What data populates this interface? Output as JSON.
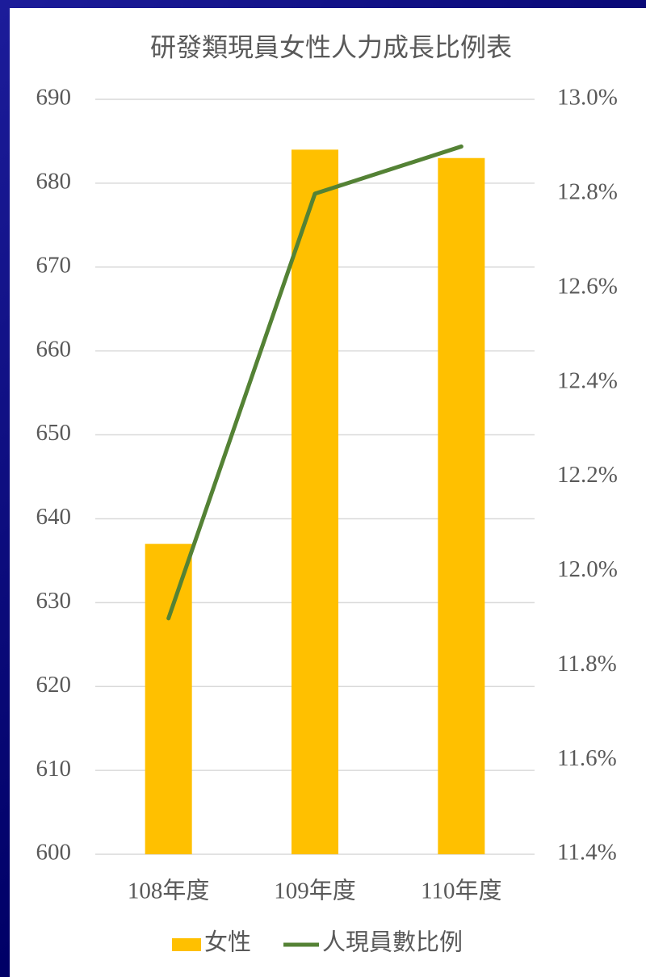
{
  "chart_data": {
    "type": "bar",
    "title": "研發類現員女性人力成長比例表",
    "categories": [
      "108年度",
      "109年度",
      "110年度"
    ],
    "series": [
      {
        "name": "女性",
        "type": "bar",
        "color": "#ffc000",
        "values": [
          637,
          684,
          683
        ]
      },
      {
        "name": "人現員數比例",
        "type": "line",
        "axis": "y2",
        "color": "#548235",
        "values": [
          11.9,
          12.8,
          12.9
        ]
      }
    ],
    "ylim": [
      600,
      690
    ],
    "yticks": [
      600,
      610,
      620,
      630,
      640,
      650,
      660,
      670,
      680,
      690
    ],
    "y2lim": [
      11.4,
      13.0
    ],
    "y2ticks": [
      {
        "value": 11.4,
        "label": "11.4%"
      },
      {
        "value": 11.6,
        "label": "11.6%"
      },
      {
        "value": 11.8,
        "label": "11.8%"
      },
      {
        "value": 12.0,
        "label": "12.0%"
      },
      {
        "value": 12.2,
        "label": "12.2%"
      },
      {
        "value": 12.4,
        "label": "12.4%"
      },
      {
        "value": 12.6,
        "label": "12.6%"
      },
      {
        "value": 12.8,
        "label": "12.8%"
      },
      {
        "value": 13.0,
        "label": "13.0%"
      }
    ],
    "grid": true,
    "legend": "bottom"
  }
}
